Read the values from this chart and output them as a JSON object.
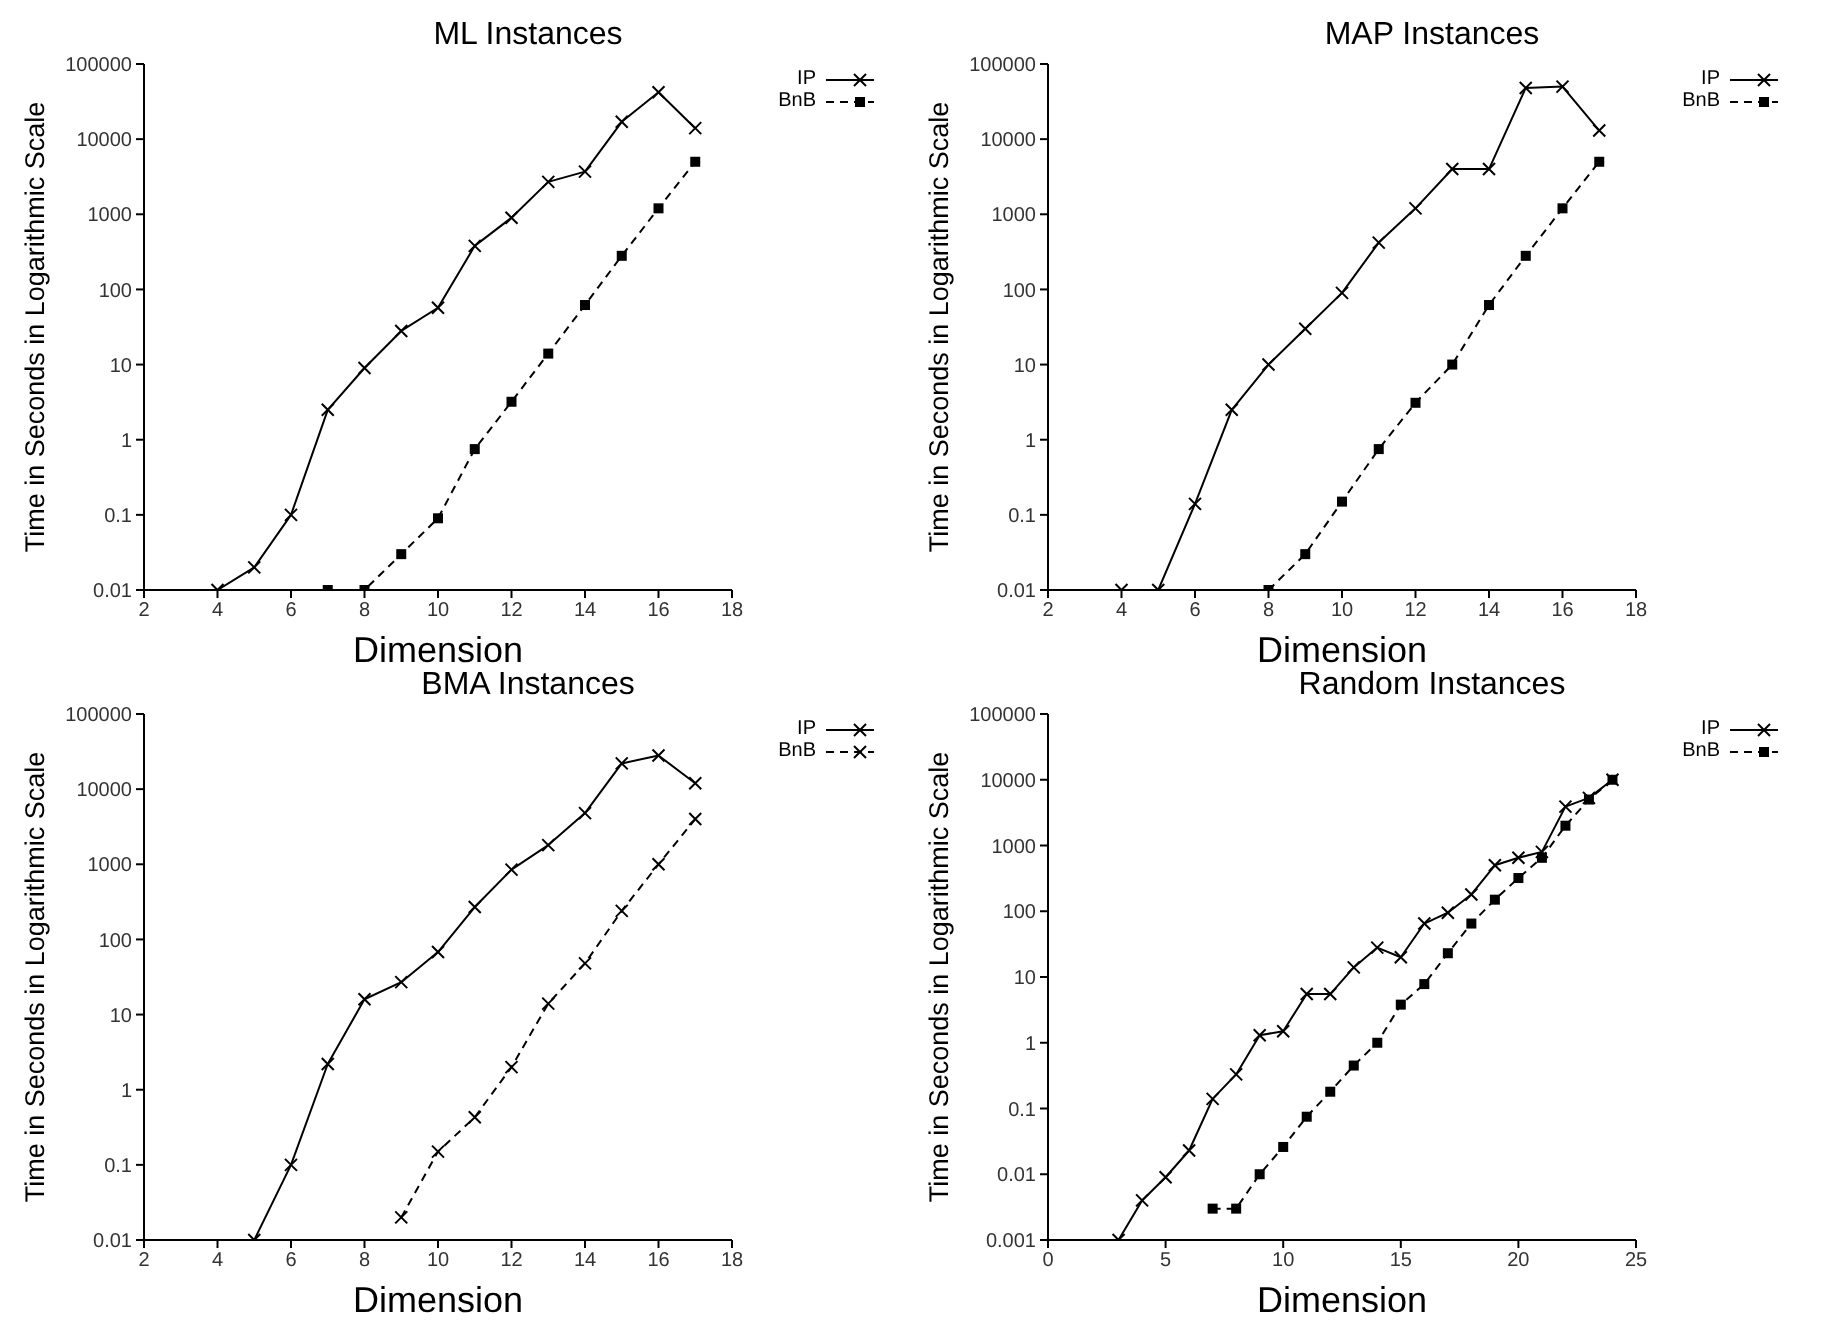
{
  "chart_data": [
    {
      "type": "line",
      "title": "ML Instances",
      "xlabel": "Dimension",
      "ylabel": "Time in Seconds in Logarithmic Scale",
      "log": "y",
      "legend": "top right",
      "xlim": [
        2,
        18
      ],
      "xticks": [
        2,
        4,
        6,
        8,
        10,
        12,
        14,
        16,
        18
      ],
      "ylim": [
        0.01,
        100000
      ],
      "yticks": [
        0.01,
        0.1,
        1,
        10,
        100,
        1000,
        10000,
        100000
      ],
      "series": [
        {
          "name": "IP",
          "color": "#000000",
          "line_style": "solid",
          "marker": "cross",
          "x": [
            4,
            5,
            6,
            7,
            8,
            9,
            10,
            11,
            12,
            13,
            14,
            15,
            16,
            17
          ],
          "values": [
            0.01,
            0.02,
            0.1,
            2.5,
            9,
            28,
            57,
            380,
            900,
            2700,
            3700,
            17000,
            42000,
            14000
          ]
        },
        {
          "name": "BnB",
          "color": "#000000",
          "line_style": "dashed",
          "marker": "square",
          "x": [
            7,
            8,
            9,
            10,
            11,
            12,
            13,
            14,
            15,
            16,
            17
          ],
          "values": [
            0.01,
            0.01,
            0.03,
            0.09,
            0.75,
            3.2,
            14,
            62,
            280,
            1200,
            5000
          ]
        }
      ]
    },
    {
      "type": "line",
      "title": "MAP Instances",
      "xlabel": "Dimension",
      "ylabel": "Time in Seconds in Logarithmic Scale",
      "log": "y",
      "legend": "top right",
      "xlim": [
        2,
        18
      ],
      "xticks": [
        2,
        4,
        6,
        8,
        10,
        12,
        14,
        16,
        18
      ],
      "ylim": [
        0.01,
        100000
      ],
      "yticks": [
        0.01,
        0.1,
        1,
        10,
        100,
        1000,
        10000,
        100000
      ],
      "series": [
        {
          "name": "IP",
          "color": "#000000",
          "line_style": "solid",
          "marker": "cross",
          "x": [
            4,
            5,
            6,
            7,
            8,
            9,
            10,
            11,
            12,
            13,
            14,
            15,
            16,
            17
          ],
          "values": [
            0.01,
            0.01,
            0.14,
            2.5,
            10,
            30,
            90,
            420,
            1200,
            4000,
            4000,
            48000,
            50000,
            13000
          ]
        },
        {
          "name": "BnB",
          "color": "#000000",
          "line_style": "dashed",
          "marker": "square",
          "x": [
            8,
            9,
            10,
            11,
            12,
            13,
            14,
            15,
            16,
            17
          ],
          "values": [
            0.01,
            0.03,
            0.15,
            0.75,
            3.1,
            10,
            62,
            280,
            1200,
            5000
          ]
        }
      ]
    },
    {
      "type": "line",
      "title": "BMA Instances",
      "xlabel": "Dimension",
      "ylabel": "Time in Seconds in Logarithmic Scale",
      "log": "y",
      "legend": "top right",
      "xlim": [
        2,
        18
      ],
      "xticks": [
        2,
        4,
        6,
        8,
        10,
        12,
        14,
        16,
        18
      ],
      "ylim": [
        0.01,
        100000
      ],
      "yticks": [
        0.01,
        0.1,
        1,
        10,
        100,
        1000,
        10000,
        100000
      ],
      "series": [
        {
          "name": "IP",
          "color": "#000000",
          "line_style": "solid",
          "marker": "cross",
          "x": [
            5,
            6,
            7,
            8,
            9,
            10,
            11,
            12,
            13,
            14,
            15,
            16,
            17
          ],
          "values": [
            0.01,
            0.1,
            2.2,
            16,
            27,
            68,
            270,
            850,
            1800,
            4800,
            22000,
            28000,
            12000
          ]
        },
        {
          "name": "BnB",
          "color": "#000000",
          "line_style": "dashed",
          "marker": "cross",
          "x": [
            9,
            10,
            11,
            12,
            13,
            14,
            15,
            16,
            17
          ],
          "values": [
            0.02,
            0.15,
            0.43,
            2,
            14,
            48,
            240,
            1000,
            4000
          ]
        }
      ]
    },
    {
      "type": "line",
      "title": "Random Instances",
      "xlabel": "Dimension",
      "ylabel": "Time in Seconds in Logarithmic Scale",
      "log": "y",
      "legend": "top right",
      "xlim": [
        0,
        25
      ],
      "xticks": [
        0,
        5,
        10,
        15,
        20,
        25
      ],
      "ylim": [
        0.001,
        100000
      ],
      "yticks": [
        0.001,
        0.01,
        0.1,
        1,
        10,
        100,
        1000,
        10000,
        100000
      ],
      "series": [
        {
          "name": "IP",
          "color": "#000000",
          "line_style": "solid",
          "marker": "cross",
          "x": [
            3,
            4,
            5,
            6,
            7,
            8,
            9,
            10,
            11,
            12,
            13,
            14,
            15,
            16,
            17,
            18,
            19,
            20,
            21,
            22,
            23,
            24
          ],
          "values": [
            0.001,
            0.004,
            0.009,
            0.023,
            0.14,
            0.33,
            1.3,
            1.5,
            5.5,
            5.5,
            14,
            28,
            20,
            65,
            95,
            180,
            500,
            650,
            800,
            3900,
            5300,
            10000
          ]
        },
        {
          "name": "BnB",
          "color": "#000000",
          "line_style": "dashed",
          "marker": "square",
          "x": [
            7,
            8,
            9,
            10,
            11,
            12,
            13,
            14,
            15,
            16,
            17,
            18,
            19,
            20,
            21,
            22,
            23,
            24
          ],
          "values": [
            0.003,
            0.003,
            0.01,
            0.026,
            0.075,
            0.18,
            0.45,
            1.0,
            3.8,
            7.8,
            23,
            65,
            150,
            320,
            650,
            2000,
            5000,
            10000
          ]
        }
      ]
    }
  ]
}
